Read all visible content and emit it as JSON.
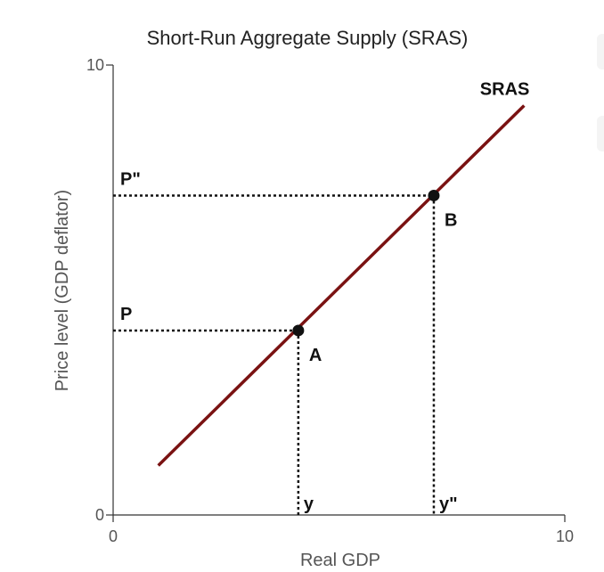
{
  "chart_data": {
    "type": "line",
    "title": "Short-Run Aggregate Supply (SRAS)",
    "xlabel": "Real GDP",
    "ylabel": "Price level (GDP deflator)",
    "xlim": [
      0,
      10
    ],
    "ylim": [
      0,
      10
    ],
    "xticks": [
      "0",
      "10"
    ],
    "yticks": [
      "0",
      "10"
    ],
    "grid": false,
    "legend": "none",
    "series": [
      {
        "name": "SRAS",
        "color": "#7a1212",
        "x": [
          1,
          9.1
        ],
        "y": [
          1.1,
          9.1
        ]
      }
    ],
    "points": [
      {
        "label": "A",
        "x": 4.1,
        "y": 4.1,
        "xlabel": "y",
        "ylabel": "P"
      },
      {
        "label": "B",
        "x": 7.1,
        "y": 7.1,
        "xlabel": "y\"",
        "ylabel": "P\""
      }
    ]
  }
}
